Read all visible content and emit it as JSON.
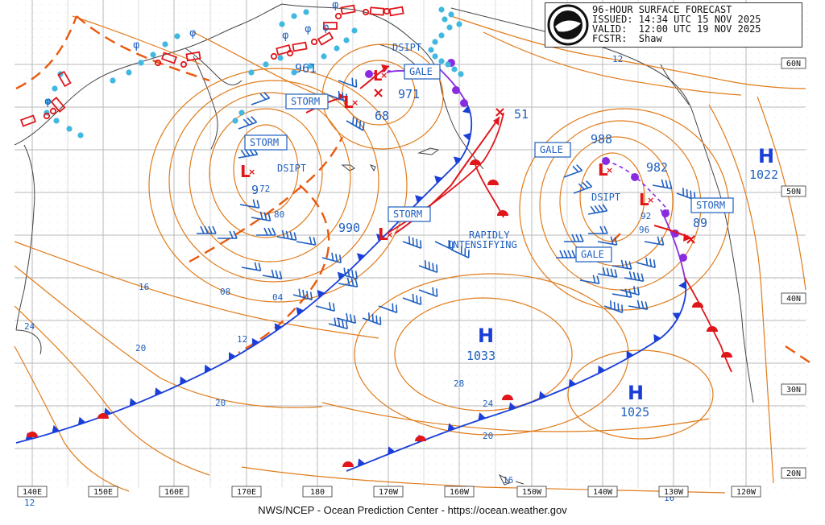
{
  "header": {
    "line1": "96-HOUR SURFACE FORECAST",
    "line2": "ISSUED: 14:34 UTC 15 NOV 2025",
    "line3": "VALID:  12:00 UTC 19 NOV 2025",
    "line4": "FCSTR:  Shaw",
    "logo": "NOAA"
  },
  "footer": "NWS/NCEP - Ocean Prediction Center - https://ocean.weather.gov",
  "lon_labels": [
    "140E",
    "150E",
    "160E",
    "170E",
    "180",
    "170W",
    "160W",
    "150W",
    "140W",
    "130W",
    "120W"
  ],
  "lat_labels": [
    "60N",
    "50N",
    "40N",
    "30N",
    "20N"
  ],
  "lows": [
    {
      "pressure": "961",
      "id": "low-961"
    },
    {
      "pressure": "971",
      "id": "low-971"
    },
    {
      "pressure": "68",
      "id": "low-68"
    },
    {
      "pressure": "51",
      "id": "low-51"
    },
    {
      "pressure": "9",
      "id": "low-9"
    },
    {
      "pressure": "990",
      "id": "low-990"
    },
    {
      "pressure": "988",
      "id": "low-988"
    },
    {
      "pressure": "982",
      "id": "low-982"
    },
    {
      "pressure": "89",
      "id": "low-89"
    }
  ],
  "highs": [
    {
      "symbol": "H",
      "pressure": "1033"
    },
    {
      "symbol": "H",
      "pressure": "1025"
    },
    {
      "symbol": "H",
      "pressure": "1022"
    }
  ],
  "warnings": {
    "storm": "STORM",
    "gale": "GALE",
    "dsipt": "DSIPT",
    "rapid1": "RAPIDLY",
    "rapid2": "INTENSIFYING"
  },
  "isobar_labels": [
    "12",
    "72",
    "80",
    "08",
    "04",
    "16",
    "24",
    "20",
    "20",
    "28",
    "24",
    "20",
    "16",
    "16",
    "12",
    "12",
    "92",
    "96"
  ],
  "colors": {
    "isobar": "#e07b1a",
    "cold_front": "#1a3fd8",
    "warm_front": "#e0161b",
    "occluded": "#8a2be2",
    "label_blue": "#1f5fbf",
    "ice": "#40b8e0",
    "grid": "#b8b8b8"
  }
}
